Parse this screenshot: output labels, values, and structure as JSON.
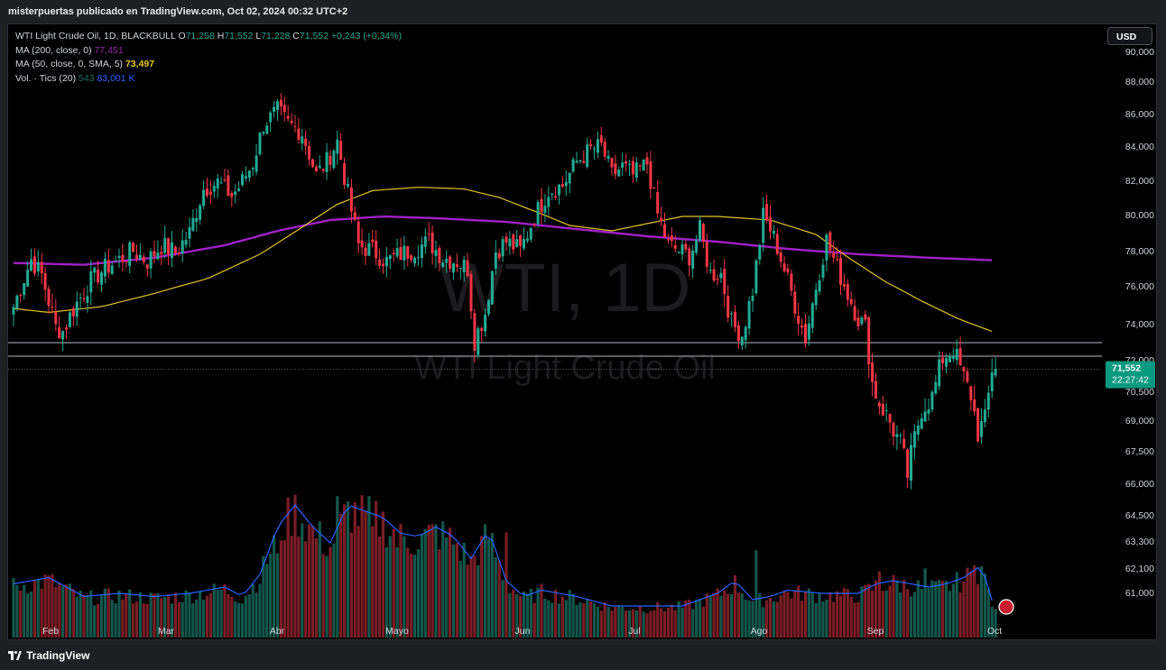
{
  "header": {
    "published_text": "misterpuertas publicado en TradingView.com, Oct 02, 2024 00:32 UTC+2"
  },
  "footer": {
    "brand": "TradingView"
  },
  "currency_button": "USD",
  "legend": {
    "title": "WTI Light Crude Oil, 1D, BLACKBULL",
    "open_label": "O",
    "open": "71,258",
    "high_label": "H",
    "high": "71,552",
    "low_label": "L",
    "low": "71,228",
    "close_label": "C",
    "close": "71,552",
    "change": "+0,243 (+0,34%)",
    "ma200_label": "MA (200, close, 0)",
    "ma200_value": "77,451",
    "ma50_label": "MA (50, close, 0, SMA, 5)",
    "ma50_value": "73,497",
    "vol_label": "Vol. · Tics (20)",
    "vol_value": "543",
    "vol_ma_value": "83,001 K"
  },
  "watermark": {
    "symbol": "WTI, 1D",
    "name": "WTI Light Crude Oil"
  },
  "chart_data": {
    "type": "candlestick",
    "symbol": "WTI Light Crude Oil",
    "interval": "1D",
    "price_scale_labels": [
      "90,000",
      "88,000",
      "86,000",
      "84,000",
      "82,000",
      "80,000",
      "78,000",
      "76,000",
      "74,000",
      "72,000",
      "70,500",
      "69,000",
      "67,500",
      "66,000",
      "64,500",
      "63,300",
      "62,100",
      "61,000"
    ],
    "price_scale_values": [
      90,
      88,
      86,
      84,
      82,
      80,
      78,
      76,
      74,
      72,
      70.5,
      69,
      67.5,
      66,
      64.5,
      63.3,
      62.1,
      61
    ],
    "x_labels": [
      "Feb",
      "Mar",
      "Abr",
      "Mayo",
      "Jun",
      "Jul",
      "Ago",
      "Sep",
      "Oct"
    ],
    "last_price_label": "71,552",
    "countdown": "22:27:42",
    "horizontal_lines": [
      72.95,
      72.2
    ],
    "keyframes_close": [
      [
        0,
        74.9
      ],
      [
        5,
        77.5
      ],
      [
        8,
        76.6
      ],
      [
        12,
        73.8
      ],
      [
        14,
        73.6
      ],
      [
        17,
        74.8
      ],
      [
        22,
        76.3
      ],
      [
        26,
        77.0
      ],
      [
        30,
        77.5
      ],
      [
        34,
        78.0
      ],
      [
        38,
        77.4
      ],
      [
        42,
        78.3
      ],
      [
        46,
        77.9
      ],
      [
        50,
        79.0
      ],
      [
        54,
        81.5
      ],
      [
        58,
        81.9
      ],
      [
        62,
        81.1
      ],
      [
        64,
        81.6
      ],
      [
        68,
        83.0
      ],
      [
        71,
        85.3
      ],
      [
        75,
        86.2
      ],
      [
        78,
        85.4
      ],
      [
        82,
        84.8
      ],
      [
        86,
        82.3
      ],
      [
        89,
        83.1
      ],
      [
        92,
        84.3
      ],
      [
        95,
        81.2
      ],
      [
        98,
        78.3
      ],
      [
        102,
        78.0
      ],
      [
        106,
        77.4
      ],
      [
        110,
        77.8
      ],
      [
        114,
        78.1
      ],
      [
        118,
        78.5
      ],
      [
        122,
        77.6
      ],
      [
        126,
        77.4
      ],
      [
        129,
        77.0
      ],
      [
        131,
        73.1
      ],
      [
        134,
        74.6
      ],
      [
        137,
        78.0
      ],
      [
        140,
        78.5
      ],
      [
        144,
        78.0
      ],
      [
        148,
        79.9
      ],
      [
        152,
        81.4
      ],
      [
        156,
        81.7
      ],
      [
        160,
        83.1
      ],
      [
        164,
        83.8
      ],
      [
        167,
        84.0
      ],
      [
        170,
        82.3
      ],
      [
        173,
        82.8
      ],
      [
        176,
        82.3
      ],
      [
        180,
        83.0
      ],
      [
        183,
        80.0
      ],
      [
        186,
        78.3
      ],
      [
        189,
        78.0
      ],
      [
        192,
        77.7
      ],
      [
        195,
        79.1
      ],
      [
        198,
        76.7
      ],
      [
        201,
        76.7
      ],
      [
        204,
        74.0
      ],
      [
        207,
        73.4
      ],
      [
        210,
        75.8
      ],
      [
        213,
        79.9
      ],
      [
        215,
        79.2
      ],
      [
        217,
        78.2
      ],
      [
        220,
        76.3
      ],
      [
        223,
        74.4
      ],
      [
        225,
        73.2
      ],
      [
        228,
        76.0
      ],
      [
        231,
        78.6
      ],
      [
        234,
        77.0
      ],
      [
        237,
        75.6
      ],
      [
        240,
        74.3
      ],
      [
        242,
        73.8
      ],
      [
        244,
        70.9
      ],
      [
        246,
        69.9
      ],
      [
        249,
        68.9
      ],
      [
        252,
        67.8
      ],
      [
        254,
        66.4
      ],
      [
        256,
        68.1
      ],
      [
        258,
        69.6
      ],
      [
        261,
        70.2
      ],
      [
        264,
        72.1
      ],
      [
        267,
        72.6
      ],
      [
        270,
        71.1
      ],
      [
        272,
        70.3
      ],
      [
        274,
        68.4
      ],
      [
        276,
        69.0
      ],
      [
        278,
        71.6
      ],
      [
        279,
        71.552
      ]
    ],
    "volume_scale": "relative",
    "volume_keyframes": [
      [
        0,
        0.17
      ],
      [
        10,
        0.19
      ],
      [
        20,
        0.13
      ],
      [
        30,
        0.14
      ],
      [
        40,
        0.13
      ],
      [
        50,
        0.14
      ],
      [
        60,
        0.16
      ],
      [
        65,
        0.13
      ],
      [
        70,
        0.2
      ],
      [
        75,
        0.35
      ],
      [
        80,
        0.42
      ],
      [
        85,
        0.35
      ],
      [
        90,
        0.3
      ],
      [
        95,
        0.42
      ],
      [
        100,
        0.4
      ],
      [
        105,
        0.38
      ],
      [
        110,
        0.33
      ],
      [
        115,
        0.32
      ],
      [
        120,
        0.35
      ],
      [
        125,
        0.32
      ],
      [
        130,
        0.25
      ],
      [
        135,
        0.34
      ],
      [
        140,
        0.18
      ],
      [
        145,
        0.13
      ],
      [
        150,
        0.15
      ],
      [
        155,
        0.14
      ],
      [
        160,
        0.13
      ],
      [
        170,
        0.1
      ],
      [
        180,
        0.1
      ],
      [
        190,
        0.1
      ],
      [
        200,
        0.14
      ],
      [
        205,
        0.18
      ],
      [
        210,
        0.12
      ],
      [
        215,
        0.13
      ],
      [
        220,
        0.15
      ],
      [
        230,
        0.14
      ],
      [
        240,
        0.14
      ],
      [
        245,
        0.17
      ],
      [
        250,
        0.18
      ],
      [
        255,
        0.17
      ],
      [
        260,
        0.16
      ],
      [
        265,
        0.17
      ],
      [
        270,
        0.19
      ],
      [
        275,
        0.23
      ],
      [
        279,
        0.08
      ]
    ],
    "volume_spikes": [
      [
        75,
        0.28
      ],
      [
        92,
        0.47
      ],
      [
        102,
        0.37
      ],
      [
        109,
        0.3
      ],
      [
        140,
        0.35
      ],
      [
        211,
        0.29
      ],
      [
        246,
        0.22
      ],
      [
        259,
        0.23
      ],
      [
        273,
        0.24
      ]
    ],
    "ma50_color": "#e6c229",
    "ma200_color": "#a020c8",
    "volume_ma_color": "#2962ff",
    "up_color": "#22ab94",
    "down_color": "#f23645",
    "level_line_color": "#787b86",
    "grid": false
  }
}
